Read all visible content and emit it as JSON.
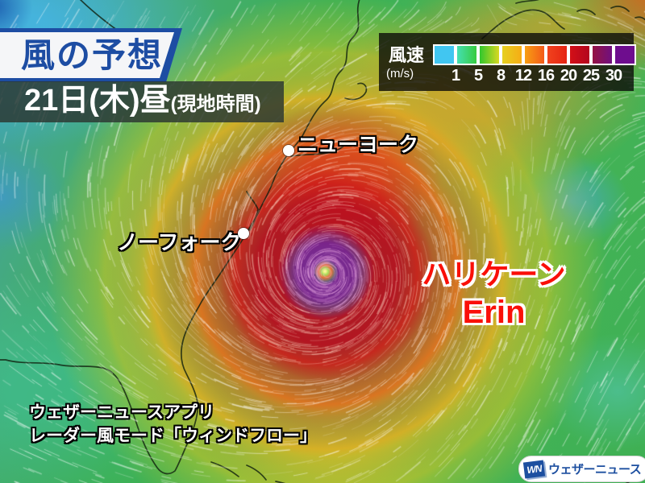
{
  "title": {
    "label": "風の予想"
  },
  "datetime": {
    "label": "21日(木)昼",
    "sub_label": "(現地時間)"
  },
  "legend": {
    "label": "風速",
    "unit": "(m/s)",
    "ticks": [
      "1",
      "5",
      "8",
      "12",
      "16",
      "20",
      "25",
      "30"
    ],
    "cell_colors": [
      "#41c6f1",
      "linear-gradient(90deg,#45dfb2,#37cb3e)",
      "linear-gradient(90deg,#31c72d,#d8d821)",
      "linear-gradient(90deg,#e6d01f,#f6ac15)",
      "linear-gradient(90deg,#f79f13,#f45a19)",
      "linear-gradient(90deg,#f1431d,#e52413)",
      "linear-gradient(90deg,#d31017,#b3061e)",
      "linear-gradient(90deg,#951343,#701080)",
      "#6e0d8e"
    ]
  },
  "cities": [
    {
      "name": "ニューヨーク"
    },
    {
      "name": "ノーフォーク"
    }
  ],
  "storm": {
    "line1": "ハリケーン",
    "line2": "Erin"
  },
  "credit": {
    "line1": "ウェザーニュースアプリ",
    "line2": "レーダー風モード「ウィンドフロー」"
  },
  "logo": {
    "mark": "WN",
    "label": "ウェザーニュース"
  },
  "colors": {
    "banner_navy": "#1d4da3",
    "storm_red": "#fa0f08",
    "logo_blue": "#1d4fa0",
    "legend_bg": "rgba(8,8,8,0.78)",
    "date_bg": "rgba(44,56,50,0.84)"
  }
}
